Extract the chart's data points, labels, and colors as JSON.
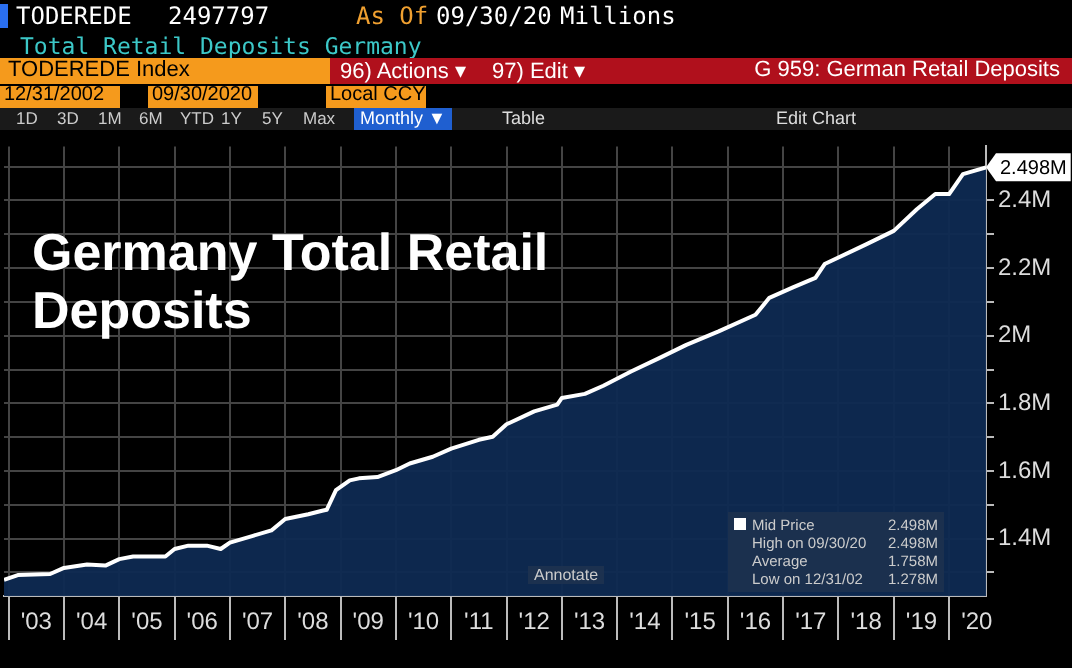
{
  "chart_data": {
    "type": "area",
    "title": "Germany Total Retail Deposits",
    "subtitle": "Total Retail Deposits Germany",
    "x": [
      "2002-12",
      "2003-03",
      "2003-10",
      "2004-01",
      "2004-06",
      "2004-10",
      "2005-01",
      "2005-04",
      "2005-11",
      "2006-01",
      "2006-04",
      "2006-08",
      "2006-11",
      "2007-01",
      "2007-06",
      "2007-10",
      "2008-01",
      "2008-06",
      "2008-09",
      "2008-10",
      "2008-12",
      "2009-03",
      "2009-05",
      "2009-09",
      "2010-01",
      "2010-04",
      "2010-09",
      "2011-01",
      "2011-07",
      "2011-10",
      "2012-01",
      "2012-07",
      "2012-12",
      "2013-01",
      "2013-06",
      "2013-10",
      "2014-04",
      "2014-10",
      "2015-04",
      "2015-11",
      "2016-07",
      "2016-10",
      "2017-03",
      "2017-08",
      "2017-10",
      "2018-07",
      "2019-01",
      "2019-06",
      "2019-10",
      "2020-01",
      "2020-04",
      "2020-09"
    ],
    "series": [
      {
        "name": "Mid Price",
        "color": "#ffffff",
        "values": [
          1278000,
          1292000,
          1295000,
          1313000,
          1323000,
          1320000,
          1339000,
          1347000,
          1347000,
          1369000,
          1379000,
          1379000,
          1369000,
          1388000,
          1408000,
          1424000,
          1458000,
          1472000,
          1482000,
          1485000,
          1543000,
          1572000,
          1578000,
          1582000,
          1602000,
          1622000,
          1642000,
          1666000,
          1692000,
          1701000,
          1738000,
          1776000,
          1796000,
          1816000,
          1828000,
          1852000,
          1894000,
          1933000,
          1973000,
          2013000,
          2062000,
          2112000,
          2142000,
          2171000,
          2212000,
          2270000,
          2310000,
          2374000,
          2419000,
          2419000,
          2478000,
          2498000
        ]
      }
    ],
    "xlim": [
      "2002-12",
      "2020-09"
    ],
    "xticks": [
      {
        "value": "2003",
        "label": null
      },
      {
        "value": "2003-07",
        "label": "'03"
      },
      {
        "value": "2004",
        "label": null
      },
      {
        "value": "2004-07",
        "label": "'04"
      },
      {
        "value": "2005",
        "label": null
      },
      {
        "value": "2005-07",
        "label": "'05"
      },
      {
        "value": "2006",
        "label": null
      },
      {
        "value": "2006-07",
        "label": "'06"
      },
      {
        "value": "2007",
        "label": null
      },
      {
        "value": "2007-07",
        "label": "'07"
      },
      {
        "value": "2008",
        "label": null
      },
      {
        "value": "2008-07",
        "label": "'08"
      },
      {
        "value": "2009",
        "label": null
      },
      {
        "value": "2009-07",
        "label": "'09"
      },
      {
        "value": "2010",
        "label": null
      },
      {
        "value": "2010-07",
        "label": "'10"
      },
      {
        "value": "2011",
        "label": null
      },
      {
        "value": "2011-07",
        "label": "'11"
      },
      {
        "value": "2012",
        "label": null
      },
      {
        "value": "2012-07",
        "label": "'12"
      },
      {
        "value": "2013",
        "label": null
      },
      {
        "value": "2013-07",
        "label": "'13"
      },
      {
        "value": "2014",
        "label": null
      },
      {
        "value": "2014-07",
        "label": "'14"
      },
      {
        "value": "2015",
        "label": null
      },
      {
        "value": "2015-07",
        "label": "'15"
      },
      {
        "value": "2016",
        "label": null
      },
      {
        "value": "2016-07",
        "label": "'16"
      },
      {
        "value": "2017",
        "label": null
      },
      {
        "value": "2017-07",
        "label": "'17"
      },
      {
        "value": "2018",
        "label": null
      },
      {
        "value": "2018-07",
        "label": "'18"
      },
      {
        "value": "2019",
        "label": null
      },
      {
        "value": "2019-07",
        "label": "'19"
      },
      {
        "value": "2020",
        "label": null
      },
      {
        "value": "2020-07",
        "label": "'20"
      }
    ],
    "ylim": [
      1230000,
      2560000
    ],
    "yticks": [
      {
        "value": 1300000,
        "label": null
      },
      {
        "value": 1400000,
        "label": "1.4M"
      },
      {
        "value": 1500000,
        "label": null
      },
      {
        "value": 1600000,
        "label": "1.6M"
      },
      {
        "value": 1700000,
        "label": null
      },
      {
        "value": 1800000,
        "label": "1.8M"
      },
      {
        "value": 1900000,
        "label": null
      },
      {
        "value": 2000000,
        "label": "2M"
      },
      {
        "value": 2100000,
        "label": null
      },
      {
        "value": 2200000,
        "label": "2.2M"
      },
      {
        "value": 2300000,
        "label": null
      },
      {
        "value": 2400000,
        "label": "2.4M"
      },
      {
        "value": 2500000,
        "label": null
      }
    ],
    "grid": true,
    "legend": "bottom right",
    "annotations": [
      "TODEREDE",
      "2497797",
      "As Of",
      "09/30/20",
      "Millions",
      "TODEREDE Index",
      "96) Actions ▾",
      "97) Edit ▾",
      "G 959: German Retail Deposits",
      "12/31/2002",
      "09/30/2020",
      "Local CCY",
      "1D",
      "3D",
      "1M",
      "6M",
      "YTD",
      "1Y",
      "5Y",
      "Max",
      "Monthly ▼",
      "Table",
      "Edit Chart",
      "Annotate",
      "2.498M",
      "High on 09/30/20",
      "2.498M",
      "Average",
      "1.758M",
      "Low on 12/31/02",
      "1.278M",
      {
        "text": "2.498M",
        "x": "2020-09",
        "y": 2498000
      }
    ]
  }
}
